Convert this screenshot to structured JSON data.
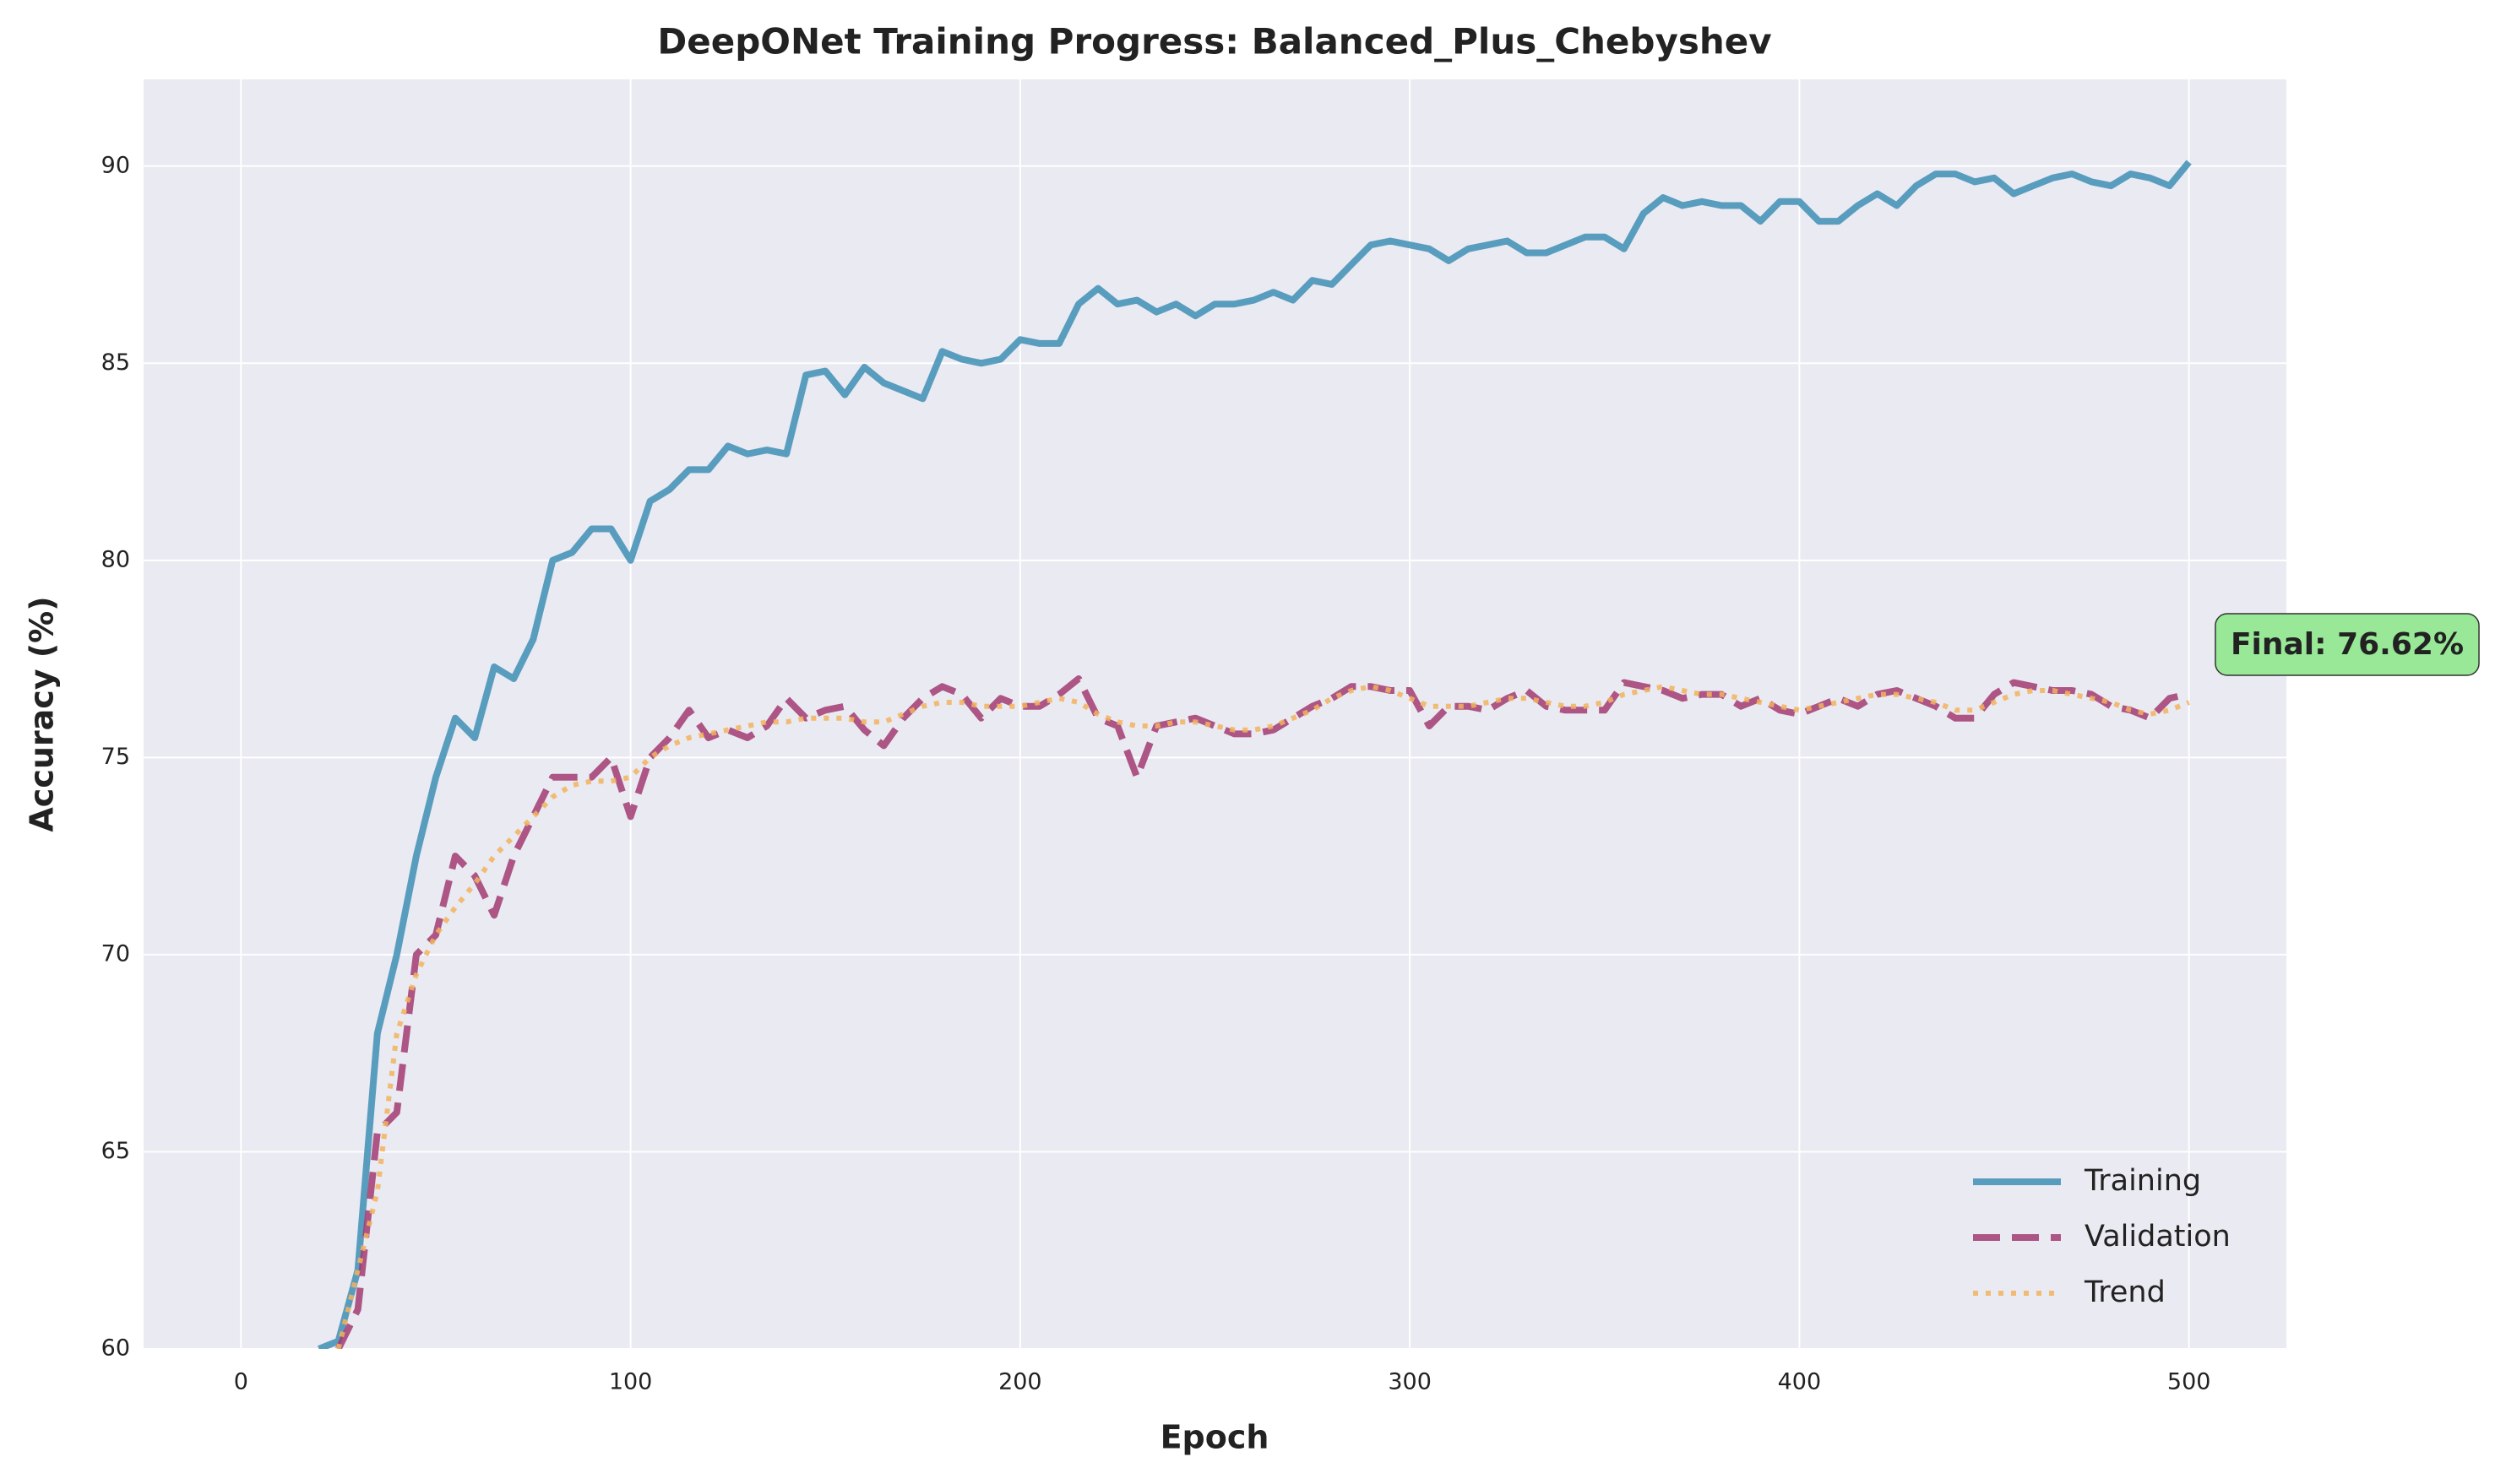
{
  "chart_data": {
    "type": "line",
    "title": "DeepONet Training Progress: Balanced_Plus_Chebyshev",
    "xlabel": "Epoch",
    "ylabel": "Accuracy (%)",
    "annotation": "Final: 76.62%",
    "xlim": [
      -25,
      525
    ],
    "ylim": [
      60,
      92.2
    ],
    "xticks": [
      0,
      100,
      200,
      300,
      400,
      500
    ],
    "yticks": [
      60,
      65,
      70,
      75,
      80,
      85,
      90
    ],
    "grid": true,
    "legend": "lower right",
    "x": [
      20,
      25,
      30,
      35,
      40,
      45,
      50,
      55,
      60,
      65,
      70,
      75,
      80,
      85,
      90,
      95,
      100,
      105,
      110,
      115,
      120,
      125,
      130,
      135,
      140,
      145,
      150,
      155,
      160,
      165,
      170,
      175,
      180,
      185,
      190,
      195,
      200,
      205,
      210,
      215,
      220,
      225,
      230,
      235,
      240,
      245,
      250,
      255,
      260,
      265,
      270,
      275,
      280,
      285,
      290,
      295,
      300,
      305,
      310,
      315,
      320,
      325,
      330,
      335,
      340,
      345,
      350,
      355,
      360,
      365,
      370,
      375,
      380,
      385,
      390,
      395,
      400,
      405,
      410,
      415,
      420,
      425,
      430,
      435,
      440,
      445,
      450,
      455,
      460,
      465,
      470,
      475,
      480,
      485,
      490,
      495,
      500
    ],
    "series": [
      {
        "name": "Training",
        "color": "#3f8fb5",
        "style": "solid",
        "values": [
          60.0,
          60.2,
          62,
          68,
          70,
          72.5,
          74.5,
          76,
          75.5,
          77.3,
          77,
          78,
          80,
          80.2,
          80.8,
          80.8,
          80,
          81.5,
          81.8,
          82.3,
          82.3,
          82.9,
          82.7,
          82.8,
          82.7,
          84.7,
          84.8,
          84.2,
          84.9,
          84.5,
          84.3,
          84.1,
          85.3,
          85.1,
          85.0,
          85.1,
          85.6,
          85.5,
          85.5,
          86.5,
          86.9,
          86.5,
          86.6,
          86.3,
          86.5,
          86.2,
          86.5,
          86.5,
          86.6,
          86.8,
          86.6,
          87.1,
          87.0,
          87.5,
          88.0,
          88.1,
          88.0,
          87.9,
          87.6,
          87.9,
          88.0,
          88.1,
          87.8,
          87.8,
          88.0,
          88.2,
          88.2,
          87.9,
          88.8,
          89.2,
          89.0,
          89.1,
          89.0,
          89.0,
          88.6,
          89.1,
          89.1,
          88.6,
          88.6,
          89.0,
          89.3,
          89.0,
          89.5,
          89.8,
          89.8,
          89.6,
          89.7,
          89.3,
          89.5,
          89.7,
          89.8,
          89.6,
          89.5,
          89.8,
          89.7,
          89.5,
          90.1
        ]
      },
      {
        "name": "Validation",
        "color": "#a23b72",
        "style": "dashed",
        "values": [
          null,
          60,
          61,
          65.5,
          66,
          70,
          70.5,
          72.5,
          72,
          71,
          72.5,
          73.5,
          74.5,
          74.5,
          74.5,
          75,
          73.5,
          75,
          75.5,
          76.2,
          75.5,
          75.7,
          75.5,
          75.8,
          76.5,
          76,
          76.2,
          76.3,
          75.7,
          75.3,
          76,
          76.5,
          76.8,
          76.6,
          76,
          76.5,
          76.3,
          76.3,
          76.6,
          77.0,
          76.0,
          75.8,
          74.5,
          75.8,
          75.9,
          76,
          75.8,
          75.6,
          75.6,
          75.7,
          76,
          76.3,
          76.5,
          76.8,
          76.8,
          76.7,
          76.7,
          75.8,
          76.3,
          76.3,
          76.2,
          76.5,
          76.7,
          76.3,
          76.2,
          76.2,
          76.2,
          76.9,
          76.8,
          76.7,
          76.5,
          76.6,
          76.6,
          76.3,
          76.5,
          76.2,
          76.1,
          76.3,
          76.5,
          76.3,
          76.6,
          76.7,
          76.5,
          76.3,
          76.0,
          76.0,
          76.6,
          76.9,
          76.8,
          76.7,
          76.7,
          76.6,
          76.3,
          76.2,
          76.0,
          76.5,
          76.62
        ]
      },
      {
        "name": "Trend",
        "color": "#f2b35e",
        "style": "dotted",
        "values": [
          null,
          60,
          62,
          64,
          68,
          69.5,
          70.5,
          71.2,
          71.8,
          72.5,
          73,
          73.5,
          74,
          74.3,
          74.4,
          74.4,
          74.5,
          75,
          75.3,
          75.5,
          75.6,
          75.7,
          75.8,
          75.9,
          75.9,
          76,
          76,
          76,
          75.9,
          75.9,
          76.1,
          76.3,
          76.4,
          76.4,
          76.3,
          76.3,
          76.3,
          76.4,
          76.5,
          76.4,
          76.1,
          75.9,
          75.8,
          75.8,
          75.9,
          75.9,
          75.8,
          75.7,
          75.7,
          75.8,
          76,
          76.2,
          76.5,
          76.7,
          76.8,
          76.7,
          76.5,
          76.3,
          76.3,
          76.3,
          76.4,
          76.5,
          76.5,
          76.4,
          76.3,
          76.3,
          76.4,
          76.6,
          76.7,
          76.8,
          76.7,
          76.6,
          76.6,
          76.5,
          76.4,
          76.3,
          76.2,
          76.3,
          76.4,
          76.5,
          76.6,
          76.6,
          76.5,
          76.4,
          76.2,
          76.2,
          76.4,
          76.6,
          76.7,
          76.7,
          76.6,
          76.5,
          76.4,
          76.2,
          76.1,
          76.2,
          76.4
        ]
      }
    ]
  }
}
